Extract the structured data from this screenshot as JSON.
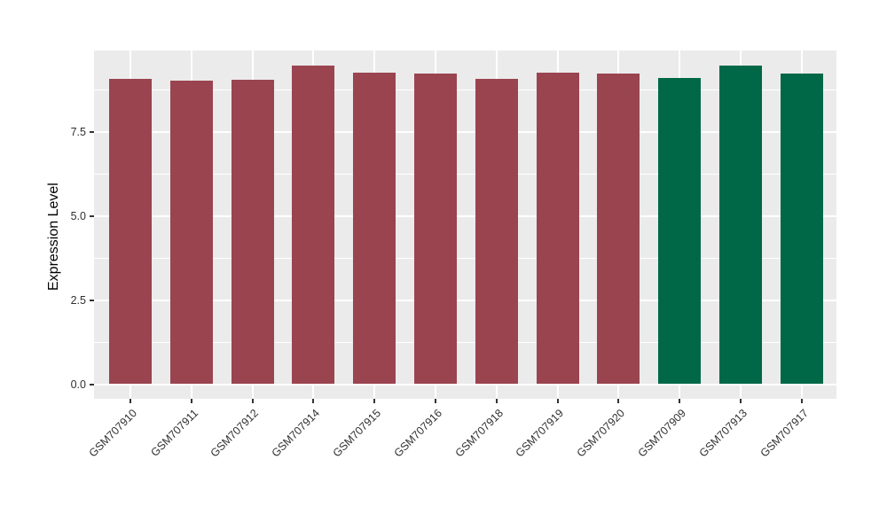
{
  "chart_data": {
    "type": "bar",
    "title": "",
    "xlabel": "",
    "ylabel": "Expression Level",
    "categories": [
      "GSM707910",
      "GSM707911",
      "GSM707912",
      "GSM707914",
      "GSM707915",
      "GSM707916",
      "GSM707918",
      "GSM707919",
      "GSM707920",
      "GSM707909",
      "GSM707913",
      "GSM707917"
    ],
    "values": [
      9.09,
      9.04,
      9.06,
      9.47,
      9.27,
      9.25,
      9.09,
      9.26,
      9.25,
      9.11,
      9.49,
      9.25
    ],
    "bar_colors": [
      "#9A4450",
      "#9A4450",
      "#9A4450",
      "#9A4450",
      "#9A4450",
      "#9A4450",
      "#9A4450",
      "#9A4450",
      "#9A4450",
      "#006847",
      "#006847",
      "#006847"
    ],
    "group_colors": {
      "red_group": "#9A4450",
      "green_group": "#006847"
    },
    "ylim": [
      0,
      9.93
    ],
    "yticks": [
      0,
      2.5,
      5,
      7.5
    ],
    "ytick_labels": [
      "0.0",
      "2.5",
      "5.0",
      "7.5"
    ],
    "minor_yticks": [
      1.25,
      3.75,
      6.25,
      8.75
    ],
    "grid": true,
    "legend_position": "none",
    "style": {
      "figure_background": "#FFFFFF",
      "panel_background": "#EBEBEB",
      "grid_color": "#FFFFFF",
      "tick_color": "#333333",
      "axis_text_color": "#303030"
    }
  }
}
